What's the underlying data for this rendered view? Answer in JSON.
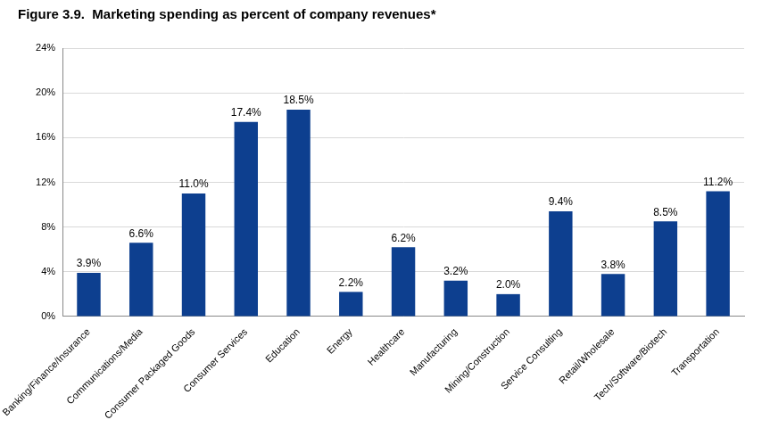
{
  "chart_data": {
    "type": "bar",
    "title": "Figure 3.9.  Marketing spending as percent of company revenues*",
    "categories": [
      "Banking/Finance/Insurance",
      "Communications/Media",
      "Consumer Packaged Goods",
      "Consumer Services",
      "Education",
      "Energy",
      "Healthcare",
      "Manufacturing",
      "Mining/Construction",
      "Service Consulting",
      "Retail/Wholesale",
      "Tech/Software/Biotech",
      "Transportation"
    ],
    "values": [
      3.9,
      6.6,
      11.0,
      17.4,
      18.5,
      2.2,
      6.2,
      3.2,
      2.0,
      9.4,
      3.8,
      8.5,
      11.2
    ],
    "value_labels": [
      "3.9%",
      "6.6%",
      "11.0%",
      "17.4%",
      "18.5%",
      "2.2%",
      "6.2%",
      "3.2%",
      "2.0%",
      "9.4%",
      "3.8%",
      "8.5%",
      "11.2%"
    ],
    "color": "#0d3f8f",
    "ylim": [
      0,
      24
    ],
    "yticks": [
      {
        "value": 0,
        "label": "0%"
      },
      {
        "value": 4,
        "label": "4%"
      },
      {
        "value": 8,
        "label": "8%"
      },
      {
        "value": 12,
        "label": "12%"
      },
      {
        "value": 16,
        "label": "16%"
      },
      {
        "value": 20,
        "label": "20%"
      },
      {
        "value": 24,
        "label": "24%"
      }
    ],
    "grid": true,
    "data_labels": true
  }
}
